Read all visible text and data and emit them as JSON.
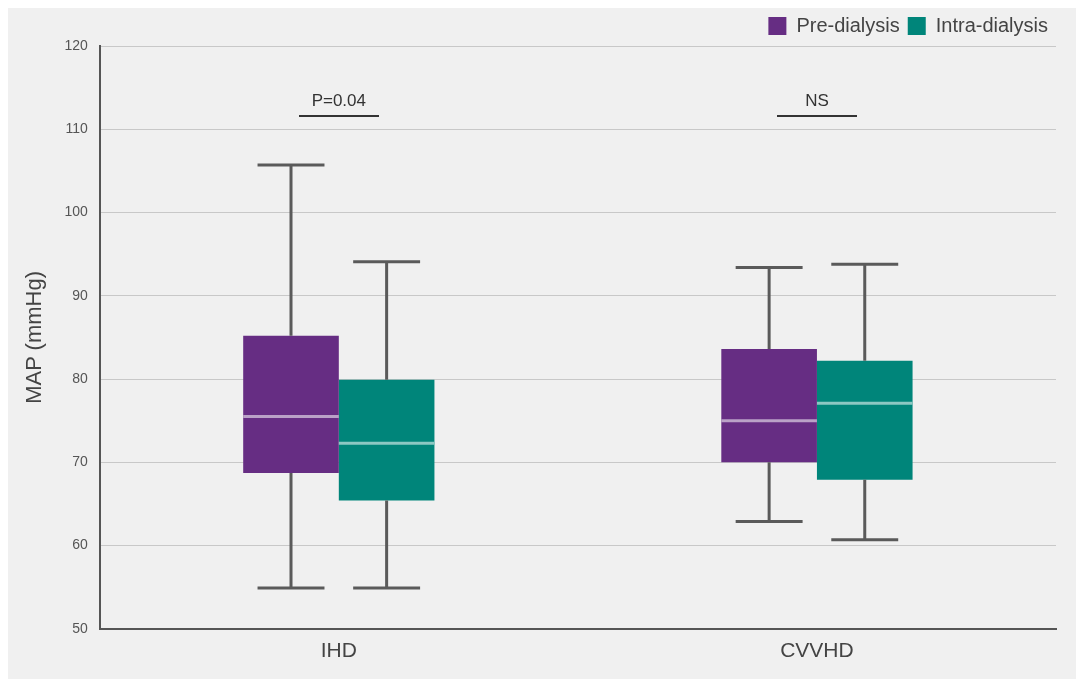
{
  "chart_data": {
    "type": "box",
    "ylabel": "MAP (mmHg)",
    "categories": [
      "IHD",
      "CVVHD"
    ],
    "series": [
      {
        "name": "Pre-dialysis",
        "color": "#662d83",
        "boxes": [
          {
            "low": 54.9,
            "q1": 68.7,
            "median": 75.5,
            "q3": 85.2,
            "high": 105.7
          },
          {
            "low": 62.9,
            "q1": 70,
            "median": 75,
            "q3": 83.6,
            "high": 93.4
          }
        ]
      },
      {
        "name": "Intra-dialysis",
        "color": "#00857a",
        "boxes": [
          {
            "low": 54.9,
            "q1": 65.4,
            "median": 72.3,
            "q3": 79.9,
            "high": 94.1
          },
          {
            "low": 60.7,
            "q1": 67.9,
            "median": 77.1,
            "q3": 82.2,
            "high": 93.8
          }
        ]
      }
    ],
    "ylim": [
      50,
      120
    ],
    "yticks": [
      50,
      60,
      70,
      80,
      90,
      100,
      110,
      120
    ],
    "grid": "y",
    "legend": "top right",
    "annotations": [
      "P=0.04",
      "NS"
    ]
  }
}
